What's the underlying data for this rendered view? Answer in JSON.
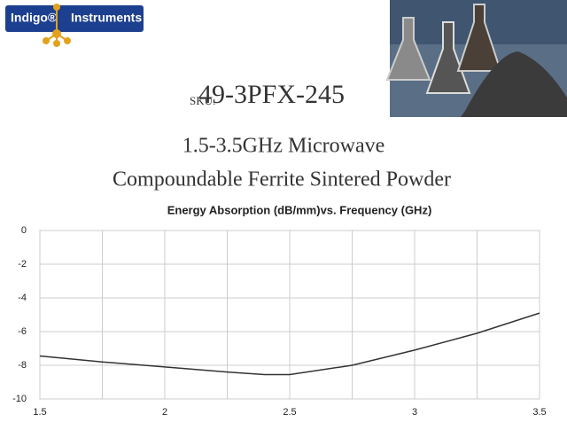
{
  "header": {
    "logo_left": "Indigo®",
    "logo_right": "Instruments",
    "sku_label": "SKU:",
    "sku": "49-3PFX-245",
    "title_line1": "1.5-3.5GHz Microwave",
    "title_line2": "Compoundable Ferrite Sintered Powder"
  },
  "chart_data": {
    "type": "line",
    "title": "Energy Absorption (dB/mm)vs. Frequency (GHz)",
    "x": [
      1.5,
      1.75,
      2.0,
      2.25,
      2.4,
      2.5,
      2.75,
      3.0,
      3.25,
      3.5
    ],
    "series": [
      {
        "name": "Absorption",
        "color": "#333333",
        "values": [
          -7.45,
          -7.8,
          -8.1,
          -8.4,
          -8.55,
          -8.55,
          -8.0,
          -7.1,
          -6.1,
          -4.9
        ]
      }
    ],
    "xlim": [
      1.5,
      3.5
    ],
    "xticks": [
      1.5,
      2,
      2.5,
      3,
      3.5
    ],
    "ylim": [
      -10,
      0
    ],
    "yticks": [
      0,
      -2,
      -4,
      -6,
      -8,
      -10
    ],
    "grid": true
  }
}
